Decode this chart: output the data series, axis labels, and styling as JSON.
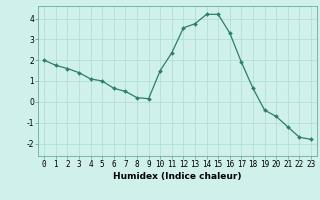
{
  "x": [
    0,
    1,
    2,
    3,
    4,
    5,
    6,
    7,
    8,
    9,
    10,
    11,
    12,
    13,
    14,
    15,
    16,
    17,
    18,
    19,
    20,
    21,
    22,
    23
  ],
  "y": [
    2.0,
    1.75,
    1.6,
    1.4,
    1.1,
    1.0,
    0.65,
    0.5,
    0.2,
    0.15,
    1.5,
    2.35,
    3.55,
    3.75,
    4.2,
    4.2,
    3.3,
    1.9,
    0.65,
    -0.4,
    -0.7,
    -1.2,
    -1.7,
    -1.8
  ],
  "bg_color": "#cff0eb",
  "line_color": "#2e7d6e",
  "grid_color": "#aaddd6",
  "xlabel": "Humidex (Indice chaleur)",
  "xlim": [
    -0.5,
    23.5
  ],
  "ylim": [
    -2.6,
    4.6
  ],
  "yticks": [
    -2,
    -1,
    0,
    1,
    2,
    3,
    4
  ],
  "xticks": [
    0,
    1,
    2,
    3,
    4,
    5,
    6,
    7,
    8,
    9,
    10,
    11,
    12,
    13,
    14,
    15,
    16,
    17,
    18,
    19,
    20,
    21,
    22,
    23
  ],
  "tick_fontsize": 5.5,
  "xlabel_fontsize": 6.5,
  "marker_size": 2.0,
  "line_width": 0.9
}
